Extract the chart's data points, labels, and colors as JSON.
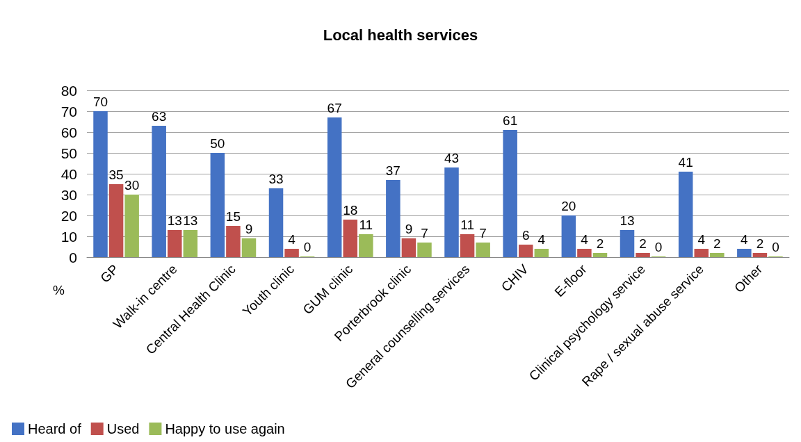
{
  "chart_data": {
    "type": "bar",
    "title": "Local health services",
    "ylabel": "%",
    "categories": [
      "GP",
      "Walk-in centre",
      "Central Health Clinic",
      "Youth clinic",
      "GUM clinic",
      "Porterbrook clinic",
      "General counselling services",
      "CHIV",
      "E-floor",
      "Clinical psychology service",
      "Rape / sexual abuse service",
      "Other"
    ],
    "series": [
      {
        "name": "Heard of",
        "color": "#4472c4",
        "values": [
          70,
          63,
          50,
          33,
          67,
          37,
          43,
          61,
          20,
          13,
          41,
          4
        ]
      },
      {
        "name": "Used",
        "color": "#c0504d",
        "values": [
          35,
          13,
          15,
          4,
          18,
          9,
          11,
          6,
          4,
          2,
          4,
          2
        ]
      },
      {
        "name": "Happy to use again",
        "color": "#9bbb59",
        "values": [
          30,
          13,
          9,
          0,
          11,
          7,
          7,
          4,
          2,
          0,
          2,
          0
        ]
      }
    ],
    "ylim": [
      0,
      80
    ],
    "yticks": [
      0,
      10,
      20,
      30,
      40,
      50,
      60,
      70,
      80
    ],
    "grid": "y",
    "legend": "bottom left",
    "data_labels": true
  }
}
